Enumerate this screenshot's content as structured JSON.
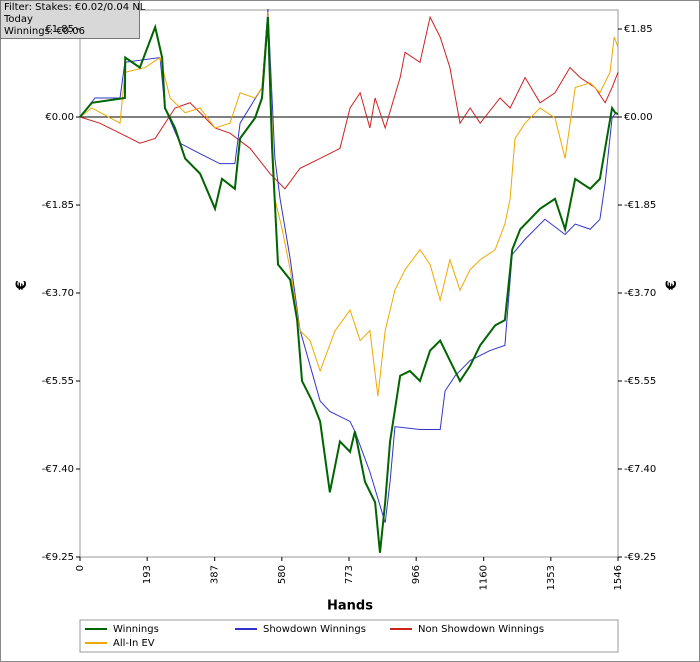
{
  "chart_data": {
    "type": "line",
    "annotations": [
      "Filter: Stakes: €0.02/0.04 NL",
      "Today",
      "Winnings: €0.06"
    ],
    "xlabel": "Hands",
    "ylabel": "€",
    "xlim": [
      0,
      1546
    ],
    "ylim": [
      -9.25,
      2.25
    ],
    "xticks": [
      0,
      193,
      387,
      580,
      773,
      966,
      1160,
      1353,
      1546
    ],
    "yticks": [
      {
        "value": -9.25,
        "label": "-€9.25"
      },
      {
        "value": -7.4,
        "label": "-€7.40"
      },
      {
        "value": -5.55,
        "label": "-€5.55"
      },
      {
        "value": -3.7,
        "label": "-€3.70"
      },
      {
        "value": -1.85,
        "label": "-€1.85"
      },
      {
        "value": 0,
        "label": "€0.00"
      },
      {
        "value": 1.85,
        "label": "€1.85"
      }
    ],
    "series": [
      {
        "name": "Winnings",
        "color": "#006400",
        "x": [
          0,
          34,
          129,
          130,
          172,
          216,
          236,
          244,
          273,
          302,
          345,
          388,
          408,
          445,
          460,
          503,
          523,
          540,
          552,
          569,
          604,
          624,
          638,
          667,
          690,
          718,
          747,
          776,
          790,
          819,
          848,
          862,
          877,
          891,
          920,
          948,
          977,
          1006,
          1035,
          1063,
          1092,
          1121,
          1150,
          1193,
          1221,
          1242,
          1265,
          1293,
          1322,
          1365,
          1394,
          1423,
          1466,
          1494,
          1509,
          1529,
          1538,
          1546
        ],
        "values": [
          0,
          0.3,
          0.4,
          1.25,
          1.04,
          1.89,
          1.25,
          0.19,
          -0.23,
          -0.87,
          -1.19,
          -1.93,
          -1.3,
          -1.51,
          -0.45,
          -0.02,
          0.4,
          2.1,
          -0.66,
          -3.1,
          -3.42,
          -4.27,
          -5.55,
          -5.97,
          -6.4,
          -7.89,
          -6.82,
          -7.04,
          -6.61,
          -7.67,
          -8.1,
          -9.16,
          -8.1,
          -6.82,
          -5.44,
          -5.34,
          -5.55,
          -4.91,
          -4.7,
          -5.12,
          -5.55,
          -5.23,
          -4.8,
          -4.38,
          -4.27,
          -2.79,
          -2.36,
          -2.15,
          -1.93,
          -1.72,
          -2.36,
          -1.3,
          -1.51,
          -1.3,
          -0.66,
          0.19,
          0.09,
          0.06
        ]
      },
      {
        "name": "Showdown Winnings",
        "color": "#3333cc",
        "x": [
          0,
          43,
          115,
          129,
          230,
          244,
          287,
          345,
          402,
          445,
          460,
          523,
          540,
          560,
          575,
          604,
          632,
          690,
          718,
          776,
          790,
          833,
          877,
          891,
          905,
          977,
          1035,
          1049,
          1078,
          1121,
          1178,
          1221,
          1242,
          1279,
          1336,
          1394,
          1423,
          1466,
          1494,
          1509,
          1529,
          1540
        ],
        "values": [
          0,
          0.4,
          0.4,
          1.15,
          1.25,
          0.19,
          -0.55,
          -0.77,
          -0.98,
          -0.98,
          -0.13,
          0.62,
          2.27,
          -0.87,
          -1.72,
          -2.98,
          -4.47,
          -5.97,
          -6.19,
          -6.4,
          -6.61,
          -7.46,
          -8.53,
          -7.67,
          -6.51,
          -6.57,
          -6.57,
          -5.76,
          -5.44,
          -5.12,
          -4.91,
          -4.8,
          -2.89,
          -2.57,
          -2.15,
          -2.47,
          -2.25,
          -2.36,
          -2.15,
          -1.4,
          -0.02,
          0.09
        ]
      },
      {
        "name": "Non Showdown Winnings",
        "color": "#cc2222",
        "x": [
          0,
          57,
          115,
          172,
          216,
          273,
          316,
          345,
          388,
          431,
          489,
          546,
          589,
          632,
          690,
          747,
          776,
          805,
          833,
          848,
          877,
          920,
          934,
          977,
          1006,
          1035,
          1063,
          1092,
          1121,
          1150,
          1207,
          1236,
          1279,
          1322,
          1365,
          1408,
          1437,
          1480,
          1509,
          1529,
          1546
        ],
        "values": [
          0,
          -0.13,
          -0.34,
          -0.55,
          -0.45,
          0.19,
          0.3,
          0.09,
          -0.23,
          -0.34,
          -0.66,
          -1.19,
          -1.51,
          -1.08,
          -0.87,
          -0.66,
          0.19,
          0.51,
          -0.23,
          0.4,
          -0.23,
          0.83,
          1.36,
          1.15,
          2.1,
          1.68,
          1.04,
          -0.13,
          0.19,
          -0.13,
          0.4,
          0.19,
          0.83,
          0.3,
          0.51,
          1.04,
          0.83,
          0.62,
          0.3,
          0.62,
          0.94
        ]
      },
      {
        "name": "All-In EV",
        "color": "#f0a800",
        "x": [
          0,
          34,
          115,
          129,
          187,
          230,
          259,
          302,
          345,
          388,
          431,
          460,
          503,
          523,
          540,
          560,
          581,
          604,
          632,
          661,
          690,
          733,
          776,
          805,
          833,
          856,
          877,
          905,
          934,
          977,
          1006,
          1035,
          1063,
          1092,
          1121,
          1150,
          1193,
          1221,
          1236,
          1250,
          1279,
          1322,
          1365,
          1394,
          1423,
          1466,
          1494,
          1523,
          1535,
          1546
        ],
        "values": [
          0,
          0.19,
          -0.13,
          0.94,
          1.04,
          1.25,
          0.4,
          0.09,
          0.19,
          -0.23,
          -0.13,
          0.51,
          0.4,
          0.62,
          2.21,
          -1.72,
          -2.36,
          -3.21,
          -4.49,
          -4.7,
          -5.34,
          -4.49,
          -4.06,
          -4.7,
          -4.49,
          -5.87,
          -4.49,
          -3.64,
          -3.21,
          -2.79,
          -3.1,
          -3.85,
          -3.0,
          -3.64,
          -3.21,
          -3.0,
          -2.79,
          -2.25,
          -1.72,
          -0.45,
          -0.13,
          0.19,
          -0.02,
          -0.87,
          0.62,
          0.72,
          0.51,
          0.94,
          1.68,
          1.47
        ]
      }
    ]
  }
}
